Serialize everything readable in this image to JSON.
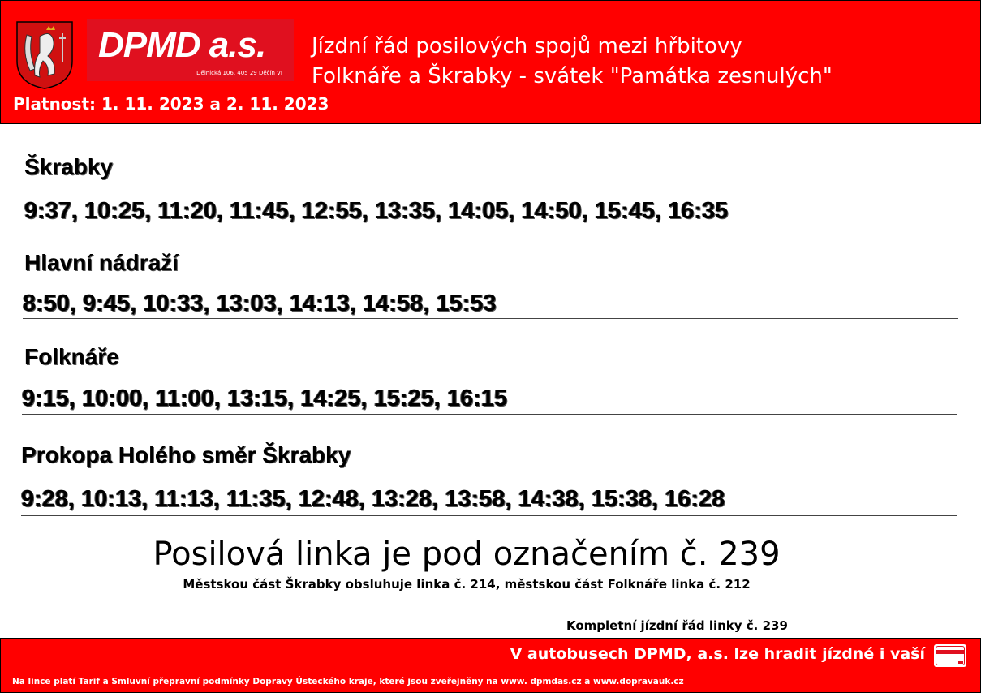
{
  "header": {
    "logo_text": "DPMD a.s.",
    "logo_address": "Dělnická 106, 405 29 Děčín VI",
    "title_line1": "Jízdní řád posilových spojů mezi hřbitovy",
    "title_line2": "Folknáře a Škrabky - svátek \"Památka zesnulých\"",
    "validity": "Platnost: 1. 11. 2023 a 2. 11. 2023"
  },
  "stops": [
    {
      "name": "Škrabky",
      "times": "9:37, 10:25, 11:20, 11:45, 12:55, 13:35, 14:05, 14:50, 15:45, 16:35"
    },
    {
      "name": "Hlavní nádraží",
      "times": "8:50, 9:45, 10:33, 13:03, 14:13, 14:58, 15:53"
    },
    {
      "name": "Folknáře",
      "times": "9:15, 10:00, 11:00, 13:15, 14:25, 15:25, 16:15"
    },
    {
      "name": "Prokopa Holého směr Škrabky",
      "times": "9:28, 10:13, 11:13, 11:35, 12:48, 13:28, 13:58, 14:38, 15:38, 16:28"
    }
  ],
  "info": {
    "line_notice": "Posilová linka je pod označením č. 239",
    "service_note": "Městskou část Škrabky obsluhuje linka č. 214, městskou část Folknáře linka č. 212",
    "complete_link": "Kompletní jízdní řád linky č. 239"
  },
  "footer": {
    "payment": "V autobusech DPMD, a.s. lze hradit jízdné i vaší",
    "fine_print": "Na lince platí Tarif a Smluvní přepravní podmínky Dopravy Ústeckého kraje, které jsou zveřejněny na www. dpmdas.cz a www.dopravauk.cz",
    "card_icon": "credit-card-icon"
  },
  "colors": {
    "brand_red": "#ff0000",
    "logo_red": "#e0101f"
  }
}
